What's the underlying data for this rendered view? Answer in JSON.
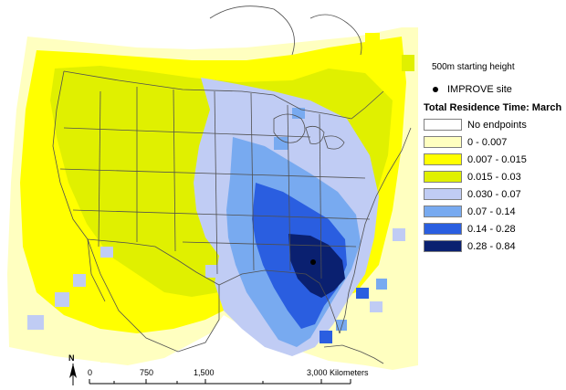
{
  "legend": {
    "height_note": "500m starting height",
    "site_label": "IMPROVE site",
    "title": "Total Residence Time: March",
    "classes": [
      {
        "label": "No endpoints",
        "color": "#ffffff"
      },
      {
        "label": "0 - 0.007",
        "color": "#ffffc0"
      },
      {
        "label": "0.007 - 0.015",
        "color": "#ffff00"
      },
      {
        "label": "0.015 - 0.03",
        "color": "#e0f000"
      },
      {
        "label": "0.030 - 0.07",
        "color": "#c0ccf4"
      },
      {
        "label": "0.07 - 0.14",
        "color": "#78aaf0"
      },
      {
        "label": "0.14 - 0.28",
        "color": "#2a5ee0"
      },
      {
        "label": "0.28 - 0.84",
        "color": "#0a2070"
      }
    ]
  },
  "scalebar": {
    "labels": [
      "0",
      "750",
      "1,500",
      "3,000 Kilometers"
    ]
  },
  "north_arrow": {
    "label": "N"
  },
  "colors": {
    "boundary": "#505050",
    "site_marker": "#000000"
  }
}
